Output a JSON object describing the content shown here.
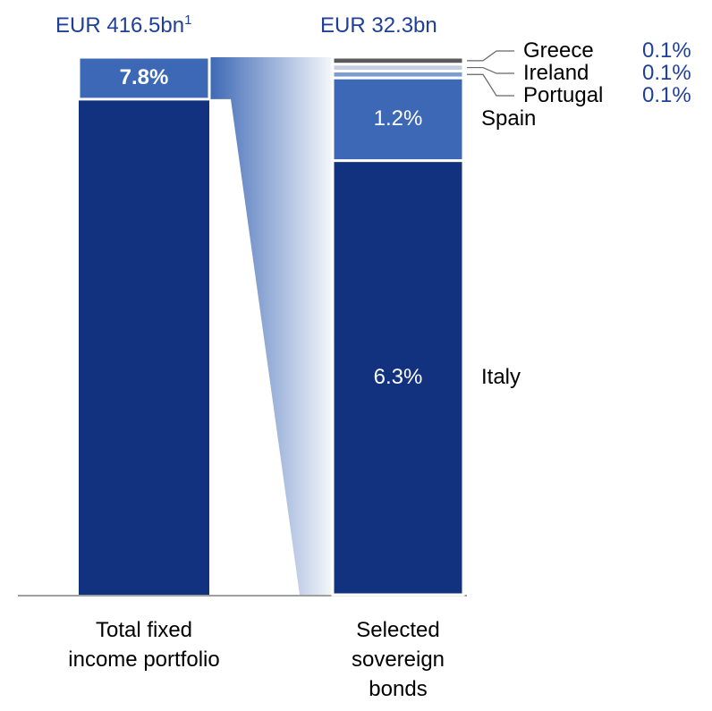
{
  "chart_data": {
    "type": "bar-of-bar",
    "total": {
      "title": "EUR 416.5bn",
      "title_footnote": "1",
      "category": "Total fixed income portfolio",
      "highlight_value": 7.8,
      "highlight_label": "7.8%",
      "color": "#12317f",
      "highlight_color": "#3d68b5"
    },
    "breakdown": {
      "title": "EUR 32.3bn",
      "category": "Selected sovereign bonds",
      "categories": [
        "Italy",
        "Spain",
        "Portugal",
        "Ireland",
        "Greece"
      ],
      "values": [
        6.3,
        1.2,
        0.1,
        0.1,
        0.1
      ],
      "value_labels": [
        "6.3%",
        "1.2%",
        "0.1%",
        "0.1%",
        "0.1%"
      ],
      "colors": [
        "#12317f",
        "#3d68b5",
        "#7f9cd0",
        "#c5cfe4",
        "#5a5a5a"
      ]
    }
  }
}
